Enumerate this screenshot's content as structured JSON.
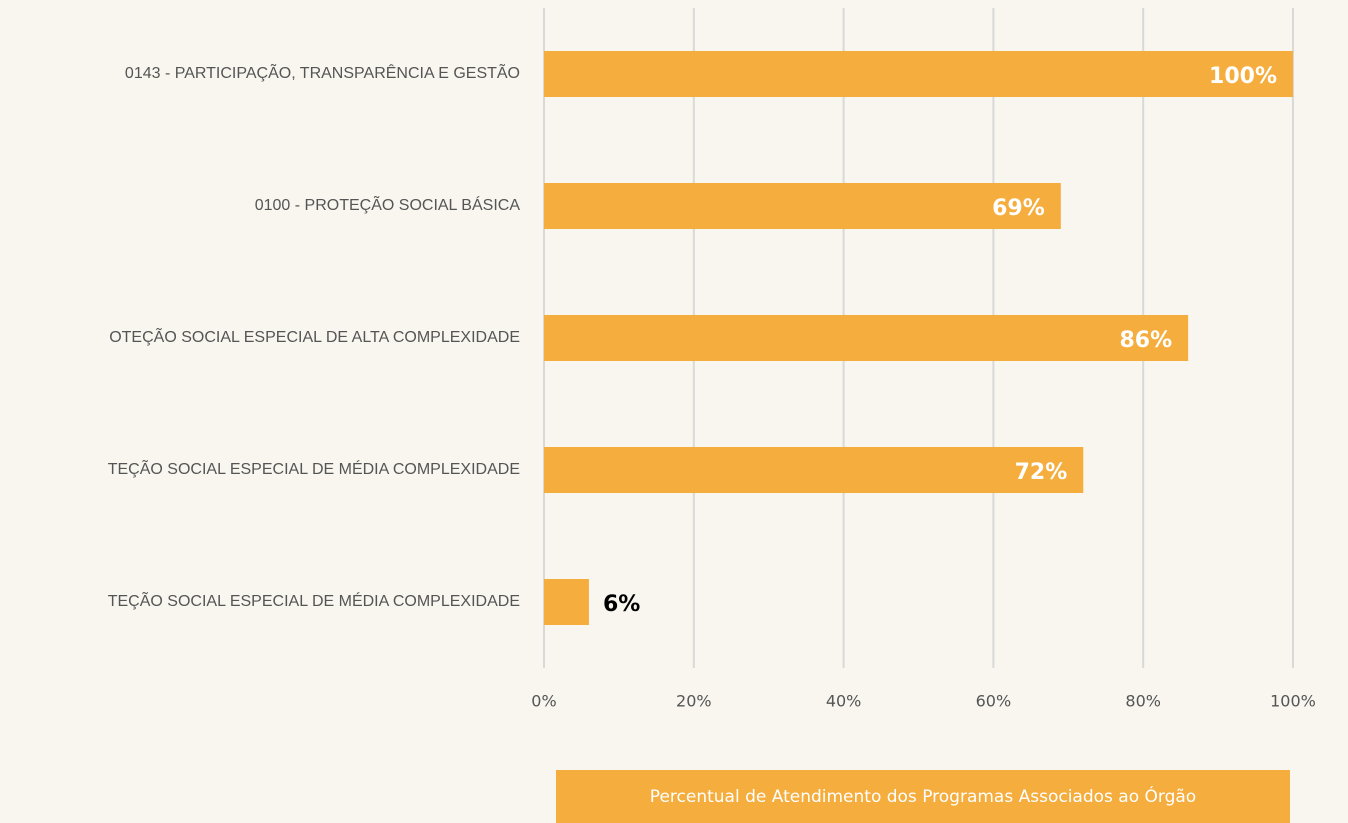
{
  "chart_data": {
    "type": "barh",
    "categories": [
      "0143 - PARTICIPAÇÃO, TRANSPARÊNCIA E GESTÃO",
      "0100 - PROTEÇÃO SOCIAL BÁSICA",
      "OTEÇÃO SOCIAL ESPECIAL DE ALTA COMPLEXIDADE",
      "TEÇÃO SOCIAL ESPECIAL DE MÉDIA COMPLEXIDADE",
      "TEÇÃO SOCIAL ESPECIAL DE MÉDIA COMPLEXIDADE"
    ],
    "series": [
      {
        "name": "Percentual de Atendimento dos Programas Associados ao Órgão",
        "color": "#f5ad3d",
        "values": [
          100,
          69,
          86,
          72,
          6
        ],
        "value_labels": [
          "100%",
          "69%",
          "86%",
          "72%",
          "6%"
        ]
      }
    ],
    "xlim": [
      0,
      100
    ],
    "xticks": [
      {
        "value": 0,
        "label": "0%"
      },
      {
        "value": 20,
        "label": "20%"
      },
      {
        "value": 40,
        "label": "40%"
      },
      {
        "value": 60,
        "label": "60%"
      },
      {
        "value": 80,
        "label": "80%"
      },
      {
        "value": 100,
        "label": "100%"
      }
    ],
    "grid": true,
    "legend": "bottom"
  }
}
